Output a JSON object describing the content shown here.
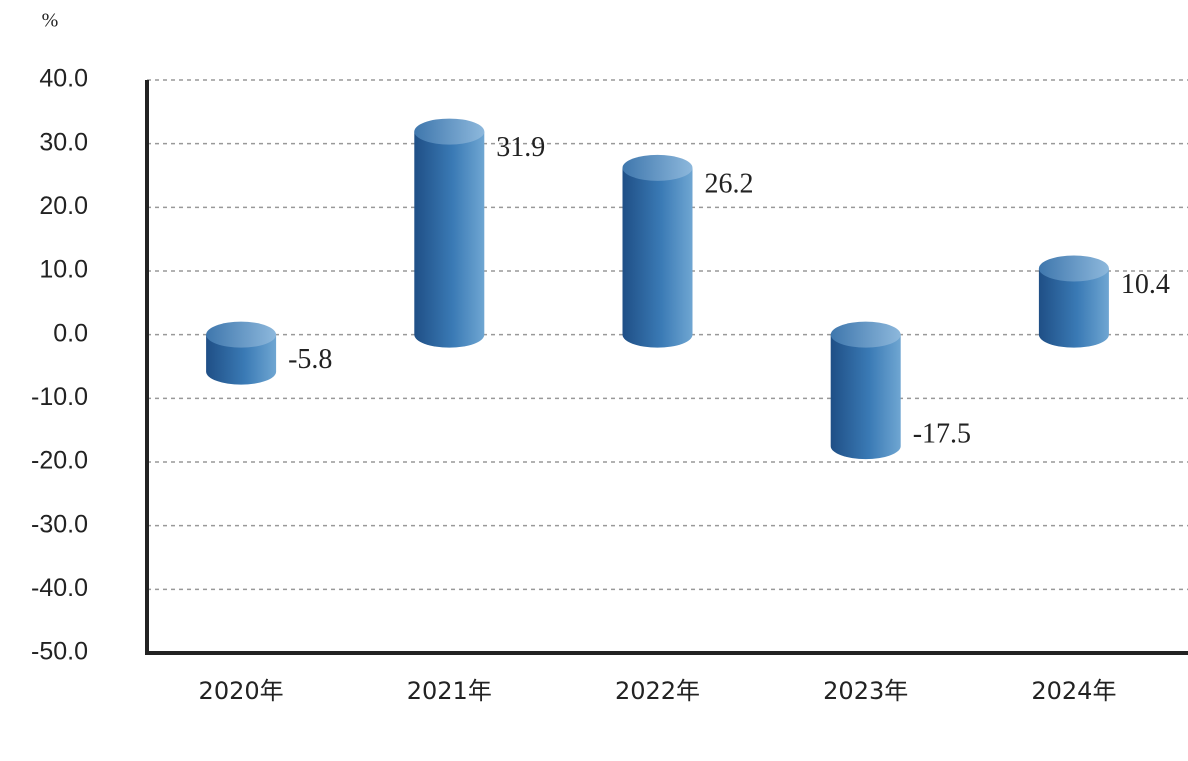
{
  "chart_data": {
    "type": "bar",
    "unit": "%",
    "categories": [
      "2020年",
      "2021年",
      "2022年",
      "2023年",
      "2024年"
    ],
    "values": [
      -5.8,
      31.9,
      26.2,
      -17.5,
      10.4
    ],
    "color": "#2e6da4",
    "ylim": [
      -50,
      40
    ],
    "yticks": [
      {
        "value": -50,
        "label": "-50.0"
      },
      {
        "value": -40,
        "label": "-40.0"
      },
      {
        "value": -30,
        "label": "-30.0"
      },
      {
        "value": -20,
        "label": "-20.0"
      },
      {
        "value": -10,
        "label": "-10.0"
      },
      {
        "value": 0,
        "label": "0.0"
      },
      {
        "value": 10,
        "label": "10.0"
      },
      {
        "value": 20,
        "label": "20.0"
      },
      {
        "value": 30,
        "label": "30.0"
      },
      {
        "value": 40,
        "label": "40.0"
      }
    ],
    "grid": true
  }
}
